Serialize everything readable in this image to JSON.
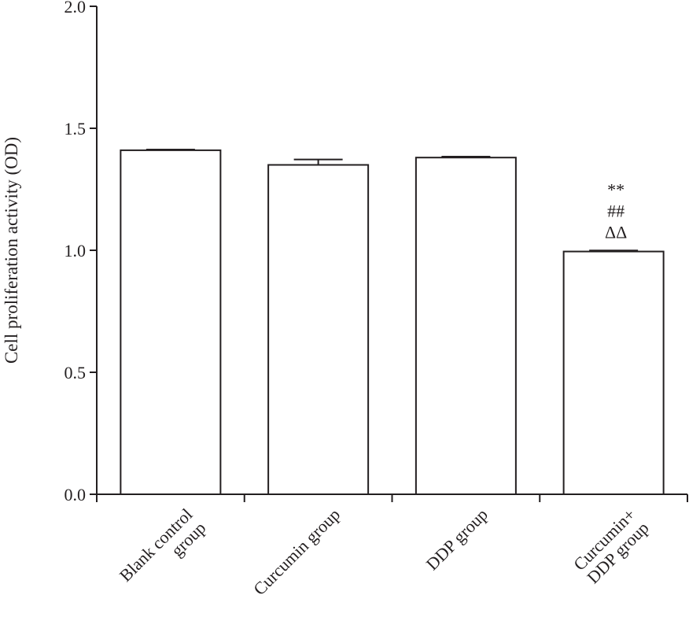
{
  "chart_data": {
    "type": "bar",
    "title": "",
    "xlabel": "",
    "ylabel": "Cell proliferation activity (OD)",
    "ylim": [
      0,
      2.0
    ],
    "yticks": [
      "0.0",
      "0.5",
      "1.0",
      "1.5",
      "2.0"
    ],
    "categories": [
      [
        "Blank control",
        "group"
      ],
      [
        "Curcumin group"
      ],
      [
        "DDP group"
      ],
      [
        "Curcumin+",
        "DDP group"
      ]
    ],
    "values": [
      1.41,
      1.35,
      1.38,
      0.995
    ],
    "errors": [
      0.003,
      0.022,
      0.004,
      0.004
    ],
    "annotations": [
      [],
      [],
      [],
      [
        "**",
        "##",
        "ΔΔ"
      ]
    ],
    "grid": false,
    "legend": "none",
    "colors": {
      "bar_fill": "#ffffff",
      "stroke": "#231f20"
    }
  }
}
